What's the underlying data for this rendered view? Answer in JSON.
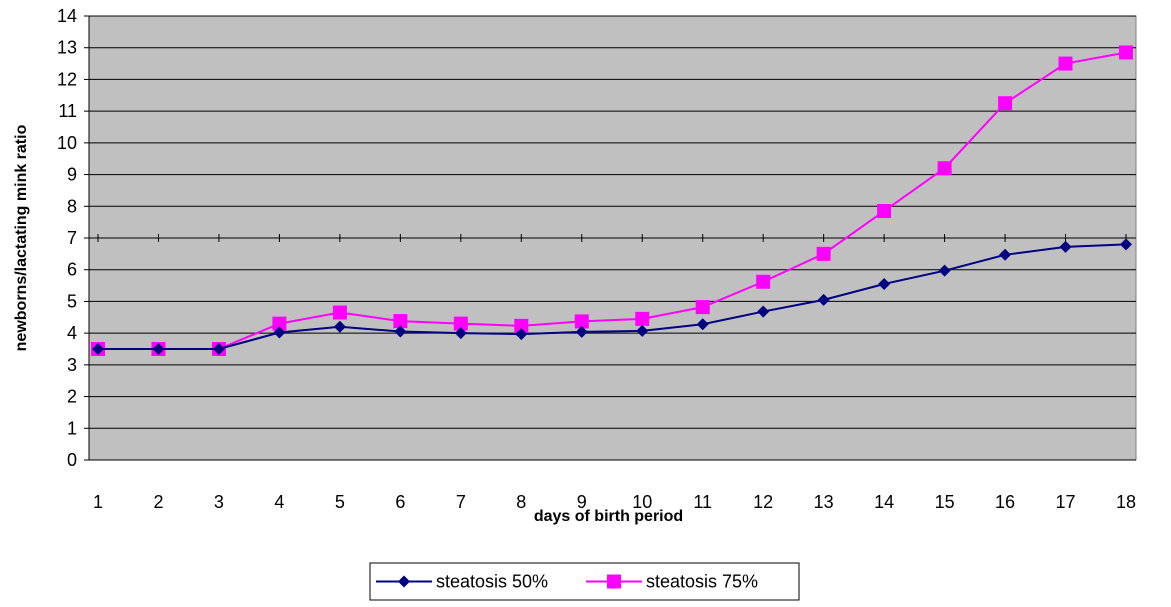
{
  "chart_data": {
    "type": "line",
    "title": "",
    "xlabel": "days of birth period",
    "ylabel": "newborns/lactating mink ratio",
    "x": [
      1,
      2,
      3,
      4,
      5,
      6,
      7,
      8,
      9,
      10,
      11,
      12,
      13,
      14,
      15,
      16,
      17,
      18
    ],
    "ylim": [
      0,
      14
    ],
    "yticks": [
      0,
      1,
      2,
      3,
      4,
      5,
      6,
      7,
      8,
      9,
      10,
      11,
      12,
      13,
      14
    ],
    "grid": "horizontal",
    "plot_background": "#c0c0c0",
    "legend_position": "bottom",
    "series": [
      {
        "name": "steatosis 50%",
        "color": "#000080",
        "marker": "diamond",
        "values": [
          3.5,
          3.5,
          3.5,
          4.02,
          4.2,
          4.05,
          4.0,
          3.97,
          4.04,
          4.07,
          4.28,
          4.68,
          5.05,
          5.55,
          5.97,
          6.47,
          6.72,
          6.8
        ]
      },
      {
        "name": "steatosis 75%",
        "color": "#ff00ff",
        "marker": "square",
        "values": [
          3.5,
          3.5,
          3.5,
          4.3,
          4.65,
          4.38,
          4.3,
          4.23,
          4.37,
          4.45,
          4.82,
          5.62,
          6.5,
          7.85,
          9.2,
          11.25,
          12.5,
          12.85
        ]
      }
    ]
  }
}
